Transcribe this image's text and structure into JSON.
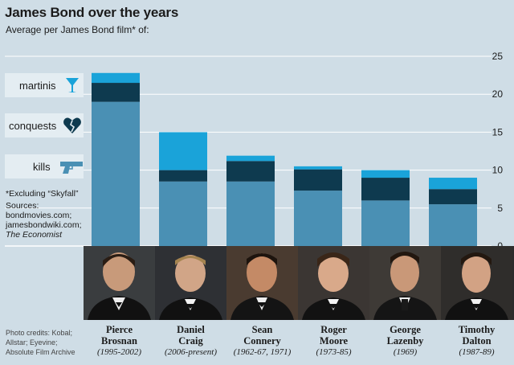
{
  "title": "James Bond over the years",
  "subtitle": "Average per James Bond film* of:",
  "legend": [
    {
      "label": "martinis",
      "icon": "martini-glass-icon",
      "color": "#1aa3d9"
    },
    {
      "label": "conquests",
      "icon": "broken-heart-icon",
      "color": "#0e3a4f"
    },
    {
      "label": "kills",
      "icon": "pistol-icon",
      "color": "#4a90b4"
    }
  ],
  "footnote": {
    "exclusion": "*Excluding “Skyfall”",
    "sources_label": "Sources:",
    "sources_1": "bondmovies.com;",
    "sources_2": "jamesbondwiki.com;",
    "sources_3": "The Economist"
  },
  "credits": {
    "line1": "Photo credits: Kobal;",
    "line2": "Allstar; Eyevine;",
    "line3": "Absolute Film Archive"
  },
  "actors": [
    {
      "first": "Pierce",
      "last": "Brosnan",
      "years": "(1995-2002)"
    },
    {
      "first": "Daniel",
      "last": "Craig",
      "years": "(2006-present)"
    },
    {
      "first": "Sean",
      "last": "Connery",
      "years": "(1962-67, 1971)"
    },
    {
      "first": "Roger",
      "last": "Moore",
      "years": "(1973-85)"
    },
    {
      "first": "George",
      "last": "Lazenby",
      "years": "(1969)"
    },
    {
      "first": "Timothy",
      "last": "Dalton",
      "years": "(1987-89)"
    }
  ],
  "chart_data": {
    "type": "bar",
    "stacked": true,
    "categories": [
      "Pierce Brosnan",
      "Daniel Craig",
      "Sean Connery",
      "Roger Moore",
      "George Lazenby",
      "Timothy Dalton"
    ],
    "series": [
      {
        "name": "kills",
        "values": [
          19.0,
          8.5,
          8.5,
          7.3,
          6.0,
          5.5
        ],
        "color": "#4a90b4"
      },
      {
        "name": "conquests",
        "values": [
          2.5,
          1.5,
          2.7,
          2.8,
          3.0,
          2.0
        ],
        "color": "#0e3a4f"
      },
      {
        "name": "martinis",
        "values": [
          1.3,
          5.0,
          0.7,
          0.4,
          1.0,
          1.5
        ],
        "color": "#1aa3d9"
      }
    ],
    "ylim": [
      0,
      25
    ],
    "yticks": [
      0,
      5,
      10,
      15,
      20,
      25
    ],
    "ytick_labels": [
      "0",
      "5",
      "10",
      "15",
      "20",
      "25"
    ],
    "grid": true,
    "axis_side": "right"
  }
}
